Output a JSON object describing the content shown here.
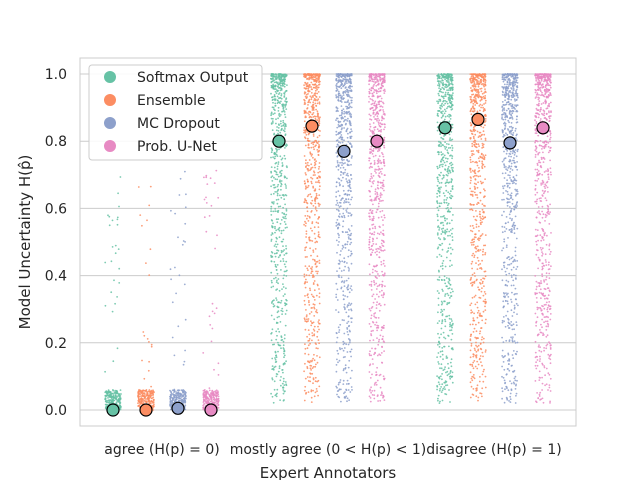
{
  "chart_data": {
    "type": "scatter",
    "subtype": "jittered strip plot with mean markers",
    "xlabel": "Expert Annotators",
    "ylabel": "Model Uncertainty H(p̂)",
    "ylim": [
      0.0,
      1.0
    ],
    "yticks": [
      "0.0",
      "0.2",
      "0.4",
      "0.6",
      "0.8",
      "1.0"
    ],
    "grid": "horizontal",
    "legend_position": "top-left",
    "categories": [
      "agree (H(p) = 0)",
      "mostly agree (0 < H(p) < 1)",
      "disagree (H(p) = 1)"
    ],
    "series": [
      {
        "name": "Softmax Output",
        "color": "#66c2a5",
        "means": [
          0.0,
          0.8,
          0.84
        ]
      },
      {
        "name": "Ensemble",
        "color": "#fc8d62",
        "means": [
          0.0,
          0.845,
          0.865
        ]
      },
      {
        "name": "MC Dropout",
        "color": "#8da0cb",
        "means": [
          0.005,
          0.77,
          0.795
        ]
      },
      {
        "name": "Prob. U-Net",
        "color": "#e78ac3",
        "means": [
          0.0,
          0.8,
          0.84
        ]
      }
    ]
  }
}
